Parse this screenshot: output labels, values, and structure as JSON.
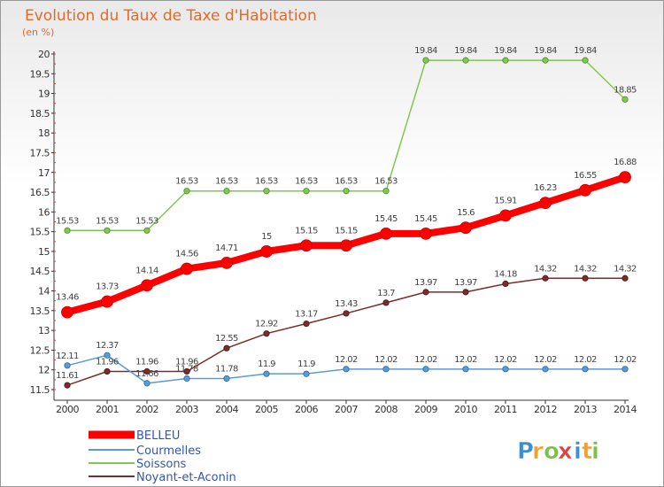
{
  "chart_data": {
    "type": "line",
    "title": "Evolution du Taux de Taxe d'Habitation",
    "subtitle": "(en %)",
    "xlabel": "",
    "ylabel": "",
    "x": [
      "2000",
      "2001",
      "2002",
      "2003",
      "2004",
      "2005",
      "2006",
      "2007",
      "2008",
      "2009",
      "2010",
      "2011",
      "2012",
      "2013",
      "2014"
    ],
    "ylim": [
      11.5,
      20
    ],
    "yticks": [
      "11.5",
      "12",
      "12.5",
      "13",
      "13.5",
      "14",
      "14.5",
      "15",
      "15.5",
      "16",
      "16.5",
      "17",
      "17.5",
      "18",
      "18.5",
      "19",
      "19.5",
      "20"
    ],
    "grid": false,
    "legend_position": "bottom-left",
    "series": [
      {
        "name": "BELLEU",
        "color": "#ff0000",
        "values": [
          13.46,
          13.73,
          14.14,
          14.56,
          14.71,
          15,
          15.15,
          15.15,
          15.45,
          15.45,
          15.6,
          15.91,
          16.23,
          16.55,
          16.88
        ],
        "labels": [
          "13.46",
          "13.73",
          "14.14",
          "14.56",
          "14.71",
          "15",
          "15.15",
          "15.15",
          "15.45",
          "15.45",
          "15.6",
          "15.91",
          "16.23",
          "16.55",
          "16.88"
        ]
      },
      {
        "name": "Courmelles",
        "color": "#5b9bd5",
        "values": [
          12.11,
          12.37,
          11.66,
          11.78,
          11.78,
          11.9,
          11.9,
          12.02,
          12.02,
          12.02,
          12.02,
          12.02,
          12.02,
          12.02,
          12.02
        ],
        "labels": [
          "12.11",
          "12.37",
          "11.66",
          "11.78",
          "11.78",
          "11.9",
          "11.9",
          "12.02",
          "12.02",
          "12.02",
          "12.02",
          "12.02",
          "12.02",
          "12.02",
          "12.02"
        ]
      },
      {
        "name": "Soissons",
        "color": "#80c850",
        "values": [
          15.53,
          15.53,
          15.53,
          16.53,
          16.53,
          16.53,
          16.53,
          16.53,
          16.53,
          19.84,
          19.84,
          19.84,
          19.84,
          19.84,
          18.85
        ],
        "labels": [
          "15.53",
          "15.53",
          "15.53",
          "16.53",
          "16.53",
          "16.53",
          "16.53",
          "16.53",
          "16.53",
          "19.84",
          "19.84",
          "19.84",
          "19.84",
          "19.84",
          "18.85"
        ]
      },
      {
        "name": "Noyant-et-Aconin",
        "color": "#7b2c2c",
        "values": [
          11.61,
          11.96,
          11.96,
          11.96,
          12.55,
          12.92,
          13.17,
          13.43,
          13.7,
          13.97,
          13.97,
          14.18,
          14.32,
          14.32,
          14.32
        ],
        "labels": [
          "11.61",
          "11.96",
          "11.96",
          "11.96",
          "12.55",
          "12.92",
          "13.17",
          "13.43",
          "13.7",
          "13.97",
          "13.97",
          "14.18",
          "14.32",
          "14.32",
          "14.32"
        ]
      }
    ]
  },
  "branding": {
    "logo_text": "Proxiti",
    "logo_colors": [
      "#3b8fd6",
      "#f0a030",
      "#7cc04a",
      "#e04040",
      "#3b8fd6",
      "#f0a030",
      "#7cc04a"
    ]
  }
}
